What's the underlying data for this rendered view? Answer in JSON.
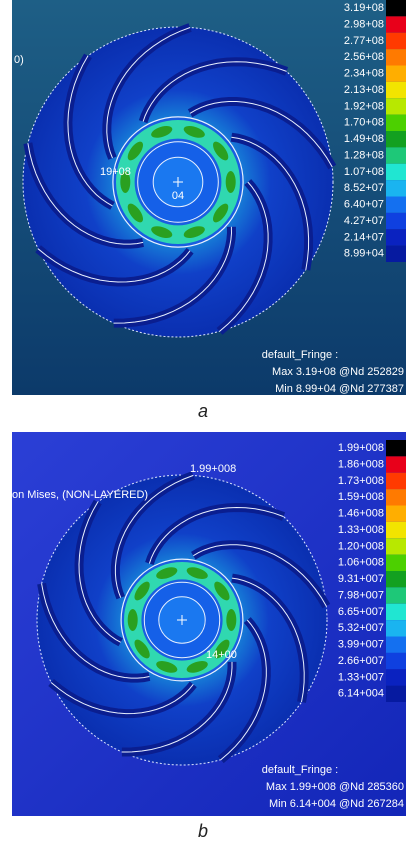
{
  "panels": [
    {
      "caption": "a",
      "legend": [
        "3.19+08",
        "2.98+08",
        "2.77+08",
        "2.56+08",
        "2.34+08",
        "2.13+08",
        "1.92+08",
        "1.70+08",
        "1.49+08",
        "1.28+08",
        "1.07+08",
        "8.52+07",
        "6.40+07",
        "4.27+07",
        "2.14+07",
        "8.99+04"
      ],
      "fringe": "default_Fringe :",
      "max": "Max 3.19+08 @Nd 252829",
      "min": "Min 8.99+04 @Nd 277387",
      "annotations": [
        "0)",
        "19+08",
        "04"
      ]
    },
    {
      "caption": "b",
      "legend": [
        "1.99+008",
        "1.86+008",
        "1.73+008",
        "1.59+008",
        "1.46+008",
        "1.33+008",
        "1.20+008",
        "1.06+008",
        "9.31+007",
        "7.98+007",
        "6.65+007",
        "5.32+007",
        "3.99+007",
        "2.66+007",
        "1.33+007",
        "6.14+004"
      ],
      "fringe": "default_Fringe :",
      "max": "Max 1.99+008 @Nd 285360",
      "min": "Min 6.14+004 @Nd 267284",
      "annotations": [
        "on Mises, (NON-LAYERED)",
        "1.99+008",
        "14+00"
      ]
    }
  ]
}
